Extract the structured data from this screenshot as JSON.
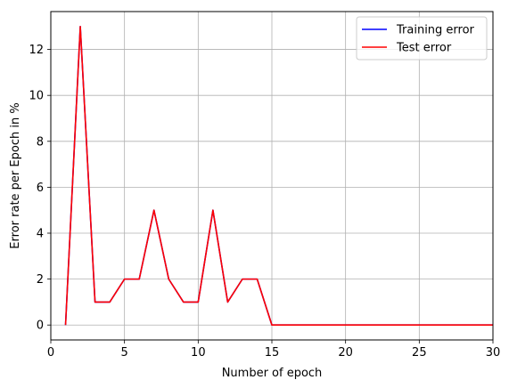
{
  "chart_data": {
    "type": "line",
    "xlabel": "Number of epoch",
    "ylabel": "Error rate per Epoch in %",
    "xlim": [
      0,
      30
    ],
    "ylim": [
      -0.65,
      13.65
    ],
    "x_ticks": [
      0,
      5,
      10,
      15,
      20,
      25,
      30
    ],
    "y_ticks": [
      0,
      2,
      4,
      6,
      8,
      10,
      12
    ],
    "grid": true,
    "legend_position": "top-right",
    "series": [
      {
        "name": "Training error",
        "color": "#0000ff",
        "x": [
          1,
          2,
          3,
          4,
          5,
          6,
          7,
          8,
          9,
          10,
          11,
          12,
          13,
          14,
          15,
          16,
          17,
          18,
          19,
          20,
          21,
          22,
          23,
          24,
          25,
          26,
          27,
          28,
          29,
          30
        ],
        "values": [
          0,
          13,
          1,
          1,
          2,
          2,
          5,
          2,
          1,
          1,
          5,
          1,
          2,
          2,
          0,
          0,
          0,
          0,
          0,
          0,
          0,
          0,
          0,
          0,
          0,
          0,
          0,
          0,
          0,
          0
        ]
      },
      {
        "name": "Test error",
        "color": "#ff0000",
        "x": [
          1,
          2,
          3,
          4,
          5,
          6,
          7,
          8,
          9,
          10,
          11,
          12,
          13,
          14,
          15,
          16,
          17,
          18,
          19,
          20,
          21,
          22,
          23,
          24,
          25,
          26,
          27,
          28,
          29,
          30
        ],
        "values": [
          0,
          13,
          1,
          1,
          2,
          2,
          5,
          2,
          1,
          1,
          5,
          1,
          2,
          2,
          0,
          0,
          0,
          0,
          0,
          0,
          0,
          0,
          0,
          0,
          0,
          0,
          0,
          0,
          0,
          0
        ]
      }
    ]
  }
}
